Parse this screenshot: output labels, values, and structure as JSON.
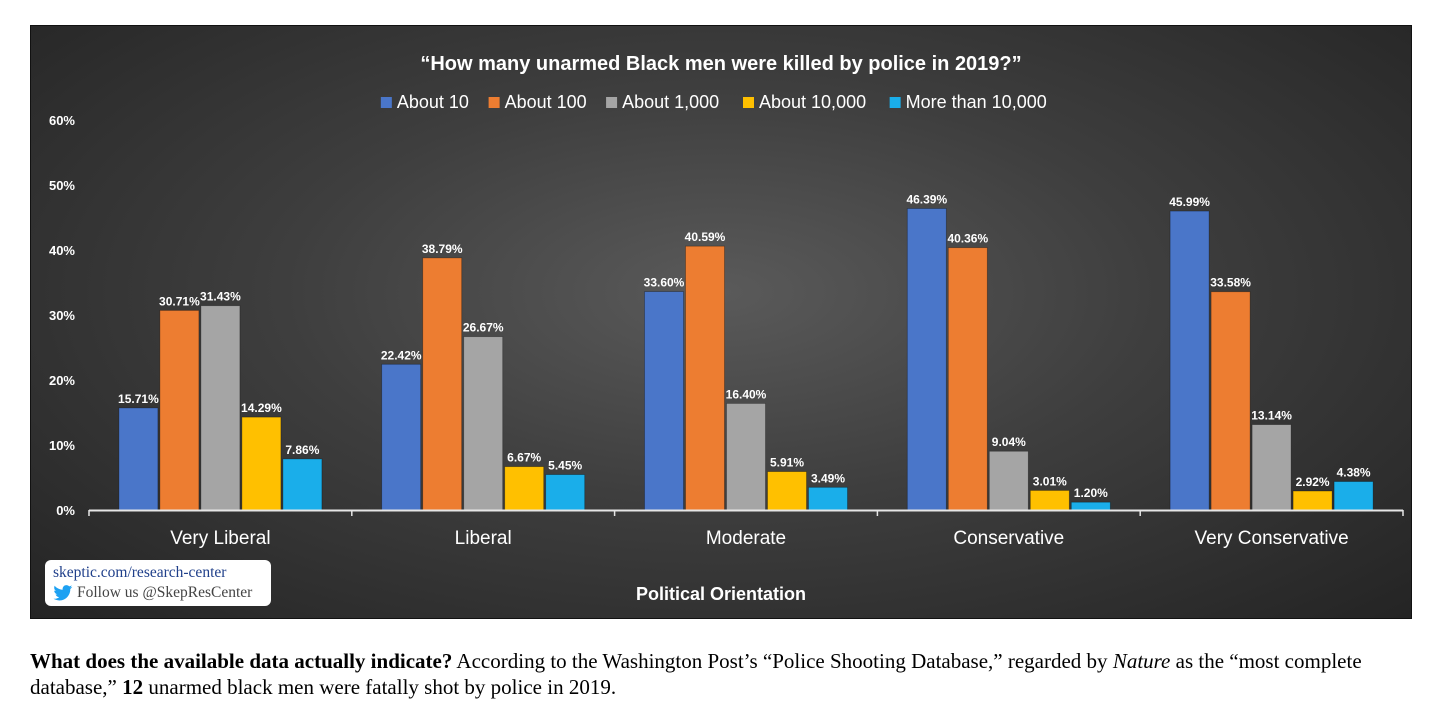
{
  "chart_data": {
    "type": "bar",
    "title": "“How many unarmed Black men were killed by police in 2019?”",
    "xlabel": "Political Orientation",
    "ylabel": "",
    "ylim": [
      0,
      60
    ],
    "yticks": [
      0,
      10,
      20,
      30,
      40,
      50,
      60
    ],
    "ytick_suffix": "%",
    "grid": false,
    "legend_position": "top",
    "categories": [
      "Very Liberal",
      "Liberal",
      "Moderate",
      "Conservative",
      "Very Conservative"
    ],
    "series": [
      {
        "name": "About 10",
        "color": "#4a76c9",
        "values": [
          15.71,
          22.42,
          33.6,
          46.39,
          45.99
        ],
        "labels": [
          "15.71%",
          "22.42%",
          "33.60%",
          "46.39%",
          "45.99%"
        ]
      },
      {
        "name": "About 100",
        "color": "#ed7d31",
        "values": [
          30.71,
          38.79,
          40.59,
          40.36,
          33.58
        ],
        "labels": [
          "30.71%",
          "38.79%",
          "40.59%",
          "40.36%",
          "33.58%"
        ]
      },
      {
        "name": "About 1,000",
        "color": "#a5a5a5",
        "values": [
          31.43,
          26.67,
          16.4,
          9.04,
          13.14
        ],
        "labels": [
          "31.43%",
          "26.67%",
          "16.40%",
          "9.04%",
          "13.14%"
        ]
      },
      {
        "name": "About 10,000",
        "color": "#ffc000",
        "values": [
          14.29,
          6.67,
          5.91,
          3.01,
          2.92
        ],
        "labels": [
          "14.29%",
          "6.67%",
          "5.91%",
          "3.01%",
          "2.92%"
        ]
      },
      {
        "name": "More than 10,000",
        "color": "#1aaeea",
        "values": [
          7.86,
          5.45,
          3.49,
          1.2,
          4.38
        ],
        "labels": [
          "7.86%",
          "5.45%",
          "3.49%",
          "1.20%",
          "4.38%"
        ]
      }
    ]
  },
  "badge": {
    "line1": "skeptic.com/research-center",
    "line2": "Follow us @SkepResCenter",
    "icon": "twitter-bird-icon"
  },
  "caption": {
    "lead_bold": "What does the available data actually indicate?",
    "text1": " According to the Washington Post’s “Police Shooting Database,” regarded by ",
    "italic": "Nature",
    "text2": " as the “most complete database,” ",
    "number_bold": "12",
    "text3": " unarmed black men were fatally shot by police in 2019."
  }
}
